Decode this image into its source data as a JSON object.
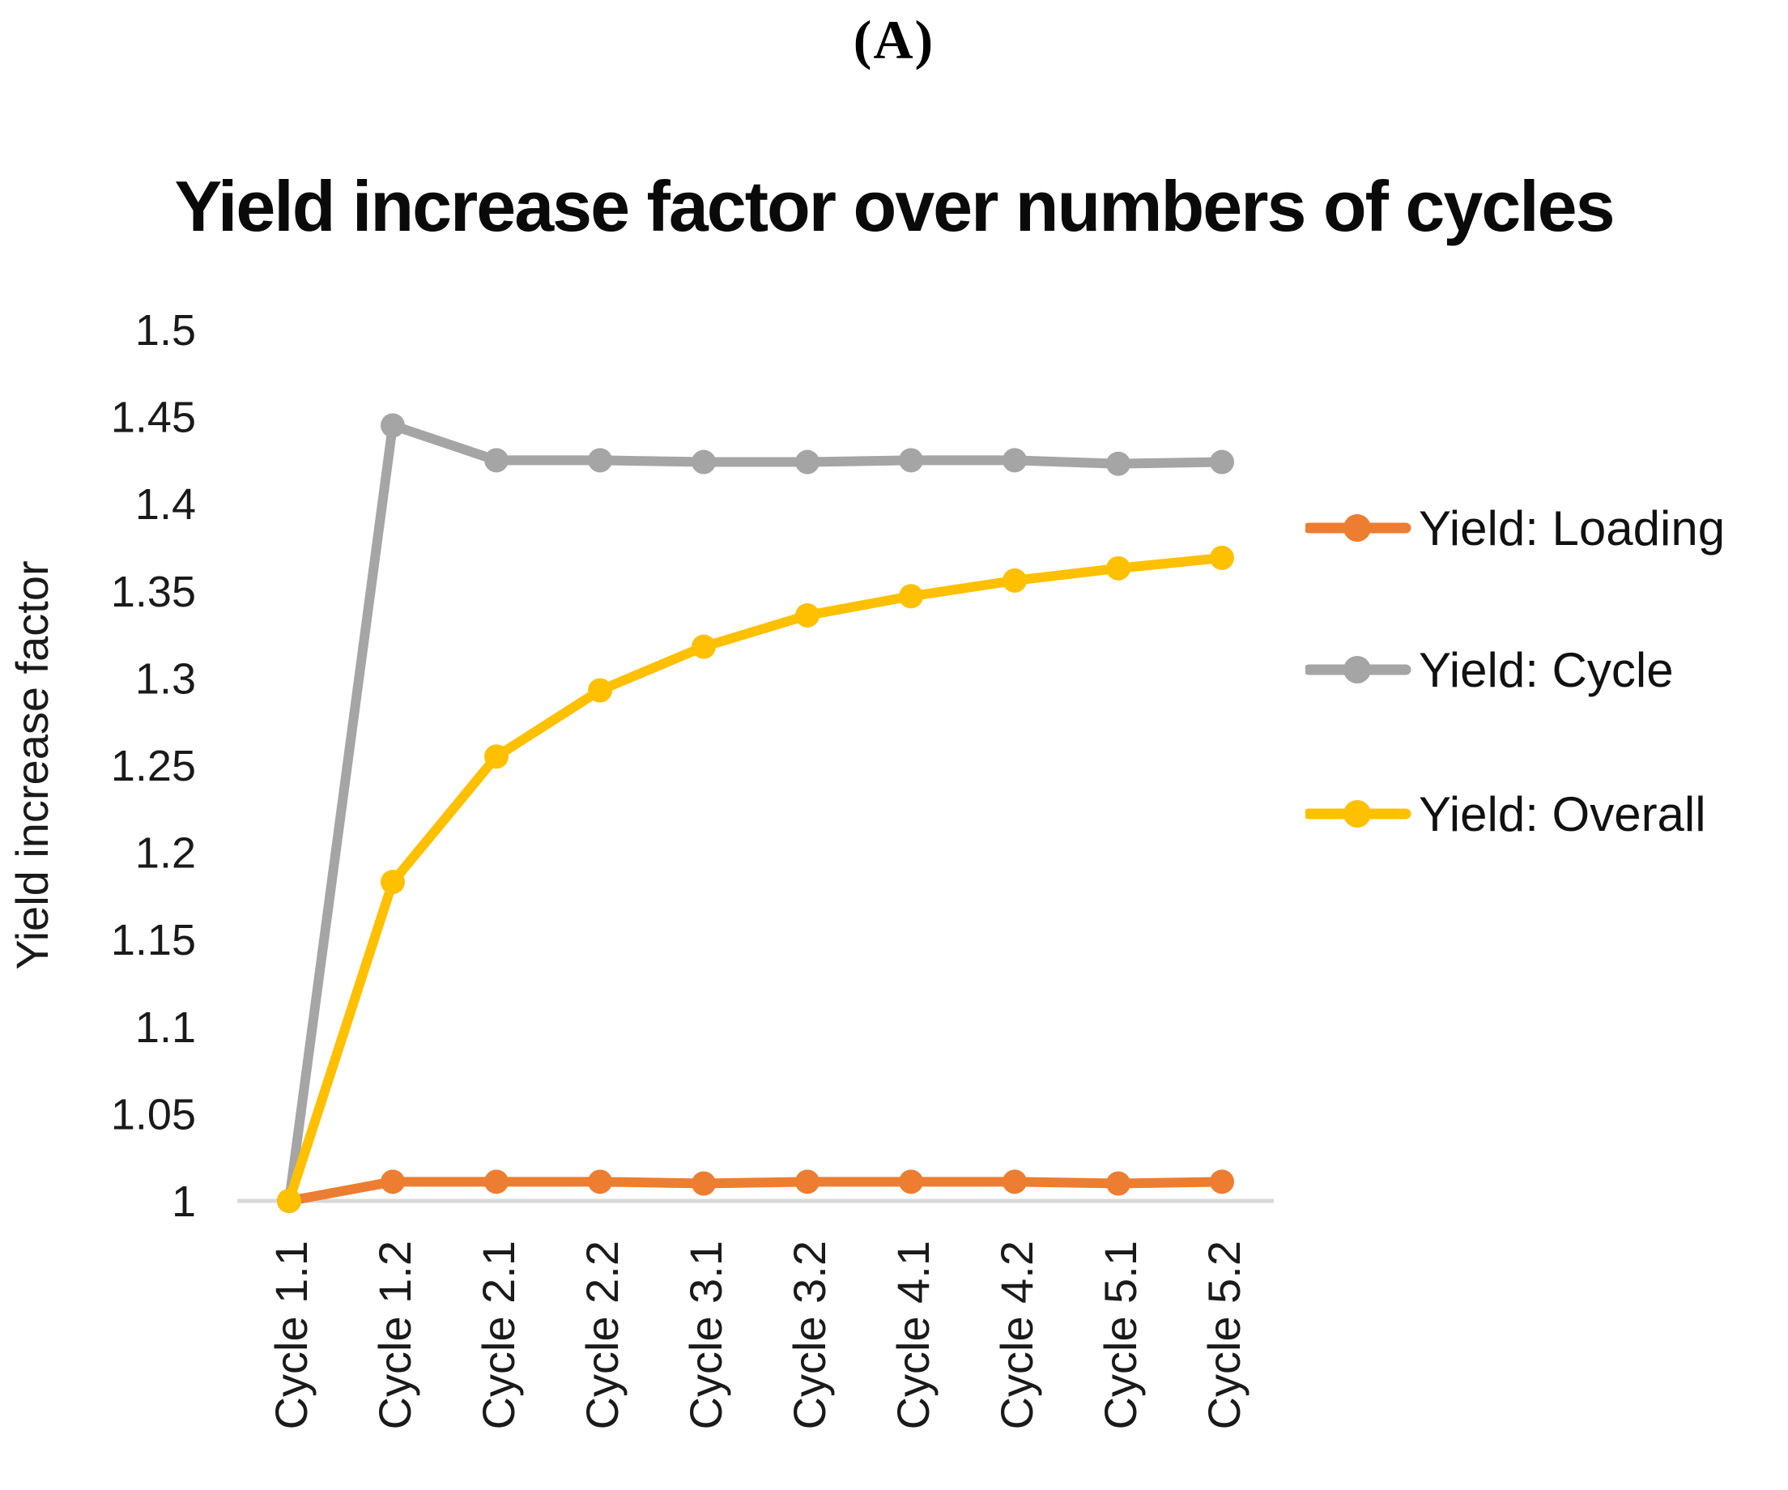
{
  "figure_label": "(A)",
  "chart_data": {
    "type": "line",
    "title": "Yield increase factor over numbers of cycles",
    "ylabel": "Yield increase factor",
    "xlabel": "",
    "categories": [
      "Cycle 1.1",
      "Cycle 1.2",
      "Cycle 2.1",
      "Cycle 2.2",
      "Cycle 3.1",
      "Cycle 3.2",
      "Cycle 4.1",
      "Cycle 4.2",
      "Cycle 5.1",
      "Cycle 5.2"
    ],
    "series": [
      {
        "name": "Yield: Loading",
        "color": "#ED7D31",
        "values": [
          1.0,
          1.011,
          1.011,
          1.011,
          1.01,
          1.011,
          1.011,
          1.011,
          1.01,
          1.011
        ]
      },
      {
        "name": "Yield: Cycle",
        "color": "#A5A5A5",
        "values": [
          1.0,
          1.445,
          1.425,
          1.425,
          1.424,
          1.424,
          1.425,
          1.425,
          1.423,
          1.424
        ]
      },
      {
        "name": "Yield: Overall",
        "color": "#FFC000",
        "values": [
          1.0,
          1.183,
          1.255,
          1.293,
          1.318,
          1.336,
          1.347,
          1.356,
          1.363,
          1.369
        ]
      }
    ],
    "ylim": [
      1,
      1.5
    ],
    "ytick_step": 0.05,
    "yticks": [
      "1",
      "1.05",
      "1.1",
      "1.15",
      "1.2",
      "1.25",
      "1.3",
      "1.35",
      "1.4",
      "1.45",
      "1.5"
    ],
    "grid": false,
    "legend_position": "right",
    "axis_line_color": "#D9D9D9",
    "marker_style": "circle"
  }
}
